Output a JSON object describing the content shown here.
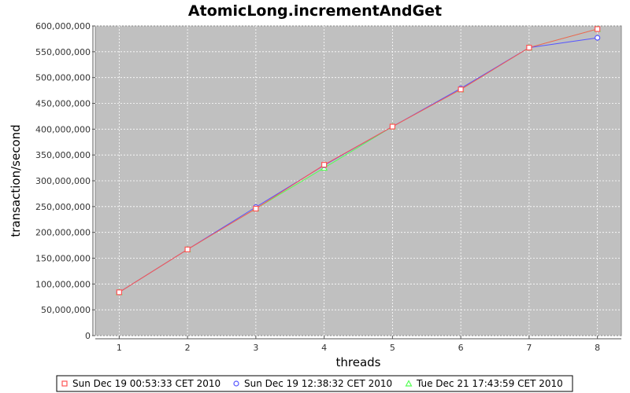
{
  "chart_data": {
    "type": "line",
    "title": "AtomicLong.incrementAndGet",
    "xlabel": "threads",
    "ylabel": "transaction/second",
    "x": [
      1,
      2,
      3,
      4,
      5,
      6,
      7,
      8
    ],
    "xlim": [
      0.65,
      8.35
    ],
    "ylim": [
      0,
      600000000
    ],
    "yticks": [
      0,
      50000000,
      100000000,
      150000000,
      200000000,
      250000000,
      300000000,
      350000000,
      400000000,
      450000000,
      500000000,
      550000000,
      600000000
    ],
    "ytick_labels": [
      "0",
      "50,000,000",
      "100,000,000",
      "150,000,000",
      "200,000,000",
      "250,000,000",
      "300,000,000",
      "350,000,000",
      "400,000,000",
      "450,000,000",
      "500,000,000",
      "550,000,000",
      "600,000,000"
    ],
    "xtick_labels": [
      "1",
      "2",
      "3",
      "4",
      "5",
      "6",
      "7",
      "8"
    ],
    "grid": true,
    "legend_position": "bottom",
    "background_color": "#c0c0c0",
    "series": [
      {
        "name": "Sun Dec 19 00:53:33 CET 2010",
        "color": "#ff5555",
        "marker": "square",
        "values": [
          84000000,
          167000000,
          246000000,
          331000000,
          405000000,
          477000000,
          558000000,
          594000000
        ]
      },
      {
        "name": "Sun Dec 19 12:38:32 CET 2010",
        "color": "#5555ff",
        "marker": "circle",
        "values": [
          84000000,
          167000000,
          249000000,
          330000000,
          405000000,
          479000000,
          558000000,
          577000000
        ]
      },
      {
        "name": "Tue Dec 21 17:43:59 CET 2010",
        "color": "#55ff55",
        "marker": "triangle",
        "values": [
          84000000,
          167000000,
          246000000,
          325000000,
          405000000,
          477000000,
          558000000,
          594000000
        ]
      }
    ]
  }
}
